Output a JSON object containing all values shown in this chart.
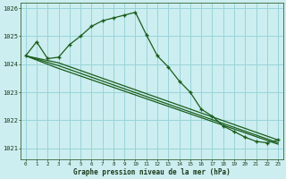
{
  "title": "Graphe pression niveau de la mer (hPa)",
  "bg_color": "#cceef0",
  "grid_color": "#99d4d8",
  "line_color": "#1a5c1a",
  "xlim": [
    -0.5,
    23.5
  ],
  "ylim": [
    1020.6,
    1026.2
  ],
  "xticks": [
    0,
    1,
    2,
    3,
    4,
    5,
    6,
    7,
    8,
    9,
    10,
    11,
    12,
    13,
    14,
    15,
    16,
    17,
    18,
    19,
    20,
    21,
    22,
    23
  ],
  "yticks": [
    1021,
    1022,
    1023,
    1024,
    1025,
    1026
  ],
  "line1_x": [
    0,
    1,
    2,
    3,
    4,
    5,
    6,
    7,
    8,
    9,
    10,
    11,
    12,
    13,
    14,
    15,
    16,
    17,
    18,
    19,
    20,
    21,
    22,
    23
  ],
  "line1_y": [
    1024.3,
    1024.8,
    1024.2,
    1024.25,
    1024.7,
    1025.0,
    1025.35,
    1025.55,
    1025.65,
    1025.75,
    1025.85,
    1025.05,
    1024.3,
    1023.9,
    1023.4,
    1023.0,
    1022.4,
    1022.15,
    1021.8,
    1021.6,
    1021.4,
    1021.25,
    1021.2,
    1021.3
  ],
  "line2_x": [
    0,
    3,
    23
  ],
  "line2_y": [
    1024.3,
    1024.05,
    1021.3
  ],
  "line3_x": [
    0,
    3,
    23
  ],
  "line3_y": [
    1024.3,
    1023.95,
    1021.2
  ],
  "line4_x": [
    0,
    3,
    23
  ],
  "line4_y": [
    1024.3,
    1023.85,
    1021.15
  ]
}
